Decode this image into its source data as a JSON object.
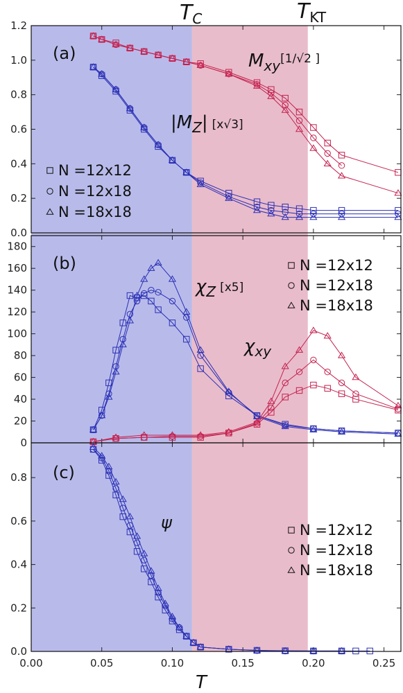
{
  "figure": {
    "xlabel": "T",
    "tc_label": "T",
    "tc_sub": "C",
    "tkt_label": "T",
    "tkt_sub": "KT",
    "tc": 0.114,
    "tkt": 0.196,
    "xlim": [
      0.0,
      0.262
    ],
    "xticks": [
      "0.00",
      "0.05",
      "0.10",
      "0.15",
      "0.20",
      "0.25"
    ],
    "colors": {
      "blue_region": "#b8bbea",
      "pink_region": "#e9bccb",
      "blue": "#2a2fb5",
      "red": "#c4204e"
    }
  },
  "chart_data": [
    {
      "type": "scatter",
      "panel": "(a)",
      "ylim": [
        0.0,
        1.2
      ],
      "yticks": [
        "0.0",
        "0.2",
        "0.4",
        "0.6",
        "0.8",
        "1.0",
        "1.2"
      ],
      "annotations": {
        "mxy": "M",
        "mxy_sub": "xy",
        "mxy_factor": "[1/√2 ]",
        "mz": "|M",
        "mz_sub": "Z",
        "mz_close": "|",
        "mz_factor": "[x√3]"
      },
      "legend": [
        "N =12x12",
        "N =12x18",
        "N =18x18"
      ],
      "series": [
        {
          "name": "N =12x12",
          "quantity": "Mxy",
          "x": [
            0.044,
            0.05,
            0.06,
            0.07,
            0.08,
            0.09,
            0.1,
            0.11,
            0.12,
            0.14,
            0.16,
            0.17,
            0.18,
            0.19,
            0.2,
            0.21,
            0.22,
            0.26
          ],
          "y": [
            1.14,
            1.12,
            1.1,
            1.07,
            1.05,
            1.03,
            1.01,
            0.99,
            0.98,
            0.93,
            0.87,
            0.83,
            0.78,
            0.7,
            0.61,
            0.52,
            0.45,
            0.35
          ]
        },
        {
          "name": "N =12x18",
          "quantity": "Mxy",
          "x": [
            0.044,
            0.05,
            0.06,
            0.07,
            0.08,
            0.09,
            0.1,
            0.11,
            0.12,
            0.14,
            0.16,
            0.17,
            0.18,
            0.19,
            0.2,
            0.21,
            0.22
          ],
          "y": [
            1.14,
            1.12,
            1.09,
            1.07,
            1.05,
            1.03,
            1.01,
            0.99,
            0.97,
            0.92,
            0.86,
            0.81,
            0.74,
            0.65,
            0.55,
            0.46,
            0.39
          ]
        },
        {
          "name": "N =18x18",
          "quantity": "Mxy",
          "x": [
            0.044,
            0.05,
            0.06,
            0.07,
            0.08,
            0.09,
            0.1,
            0.11,
            0.12,
            0.14,
            0.16,
            0.17,
            0.18,
            0.19,
            0.2,
            0.21,
            0.22,
            0.26
          ],
          "y": [
            1.14,
            1.12,
            1.09,
            1.07,
            1.05,
            1.03,
            1.01,
            0.99,
            0.97,
            0.92,
            0.85,
            0.79,
            0.71,
            0.6,
            0.49,
            0.4,
            0.33,
            0.23
          ]
        },
        {
          "name": "N =12x12",
          "quantity": "Mz",
          "x": [
            0.044,
            0.05,
            0.06,
            0.07,
            0.08,
            0.09,
            0.1,
            0.11,
            0.12,
            0.14,
            0.16,
            0.17,
            0.18,
            0.19,
            0.2,
            0.22,
            0.26
          ],
          "y": [
            0.96,
            0.91,
            0.82,
            0.71,
            0.6,
            0.5,
            0.42,
            0.35,
            0.3,
            0.23,
            0.18,
            0.16,
            0.15,
            0.14,
            0.13,
            0.13,
            0.13
          ]
        },
        {
          "name": "N =12x18",
          "quantity": "Mz",
          "x": [
            0.044,
            0.05,
            0.06,
            0.07,
            0.08,
            0.09,
            0.1,
            0.11,
            0.12,
            0.14,
            0.16,
            0.17,
            0.18,
            0.19,
            0.2,
            0.22,
            0.26
          ],
          "y": [
            0.96,
            0.92,
            0.83,
            0.72,
            0.61,
            0.51,
            0.42,
            0.35,
            0.29,
            0.21,
            0.15,
            0.13,
            0.12,
            0.11,
            0.11,
            0.11,
            0.11
          ]
        },
        {
          "name": "N =18x18",
          "quantity": "Mz",
          "x": [
            0.044,
            0.05,
            0.06,
            0.07,
            0.08,
            0.09,
            0.1,
            0.11,
            0.12,
            0.14,
            0.16,
            0.17,
            0.18,
            0.19,
            0.2,
            0.22,
            0.26
          ],
          "y": [
            0.96,
            0.92,
            0.83,
            0.72,
            0.61,
            0.51,
            0.42,
            0.35,
            0.28,
            0.2,
            0.13,
            0.11,
            0.09,
            0.09,
            0.09,
            0.09,
            0.09
          ]
        }
      ]
    },
    {
      "type": "scatter",
      "panel": "(b)",
      "ylim": [
        0,
        190
      ],
      "yticks": [
        "0",
        "20",
        "40",
        "60",
        "80",
        "100",
        "120",
        "140",
        "160",
        "180"
      ],
      "annotations": {
        "chiz": "χ",
        "chiz_sub": "Z",
        "chiz_factor": "[x5]",
        "chixy": "χ",
        "chixy_sub": "xy"
      },
      "legend": [
        "N =12x12",
        "N =12x18",
        "N =18x18"
      ],
      "series": [
        {
          "name": "N =12x12",
          "quantity": "chi_z",
          "x": [
            0.044,
            0.05,
            0.055,
            0.06,
            0.065,
            0.07,
            0.075,
            0.08,
            0.085,
            0.09,
            0.1,
            0.11,
            0.12,
            0.14,
            0.16,
            0.18,
            0.2,
            0.22,
            0.26
          ],
          "y": [
            12,
            30,
            55,
            85,
            110,
            135,
            133,
            135,
            130,
            122,
            110,
            95,
            68,
            43,
            25,
            17,
            13,
            11,
            9
          ]
        },
        {
          "name": "N =12x18",
          "quantity": "chi_z",
          "x": [
            0.044,
            0.05,
            0.055,
            0.06,
            0.065,
            0.07,
            0.075,
            0.08,
            0.085,
            0.09,
            0.1,
            0.11,
            0.12,
            0.14,
            0.16,
            0.18,
            0.2,
            0.22,
            0.26
          ],
          "y": [
            12,
            25,
            45,
            70,
            95,
            118,
            130,
            137,
            140,
            138,
            130,
            115,
            80,
            46,
            25,
            16,
            13,
            11,
            9
          ]
        },
        {
          "name": "N =18x18",
          "quantity": "chi_z",
          "x": [
            0.044,
            0.05,
            0.055,
            0.06,
            0.065,
            0.07,
            0.075,
            0.08,
            0.085,
            0.09,
            0.1,
            0.11,
            0.12,
            0.14,
            0.16,
            0.18,
            0.2,
            0.22,
            0.26
          ],
          "y": [
            12,
            25,
            42,
            65,
            90,
            112,
            135,
            150,
            160,
            165,
            150,
            120,
            85,
            47,
            24,
            15,
            12,
            10,
            8
          ]
        },
        {
          "name": "N =12x12",
          "quantity": "chi_xy",
          "x": [
            0.044,
            0.06,
            0.08,
            0.1,
            0.12,
            0.14,
            0.16,
            0.17,
            0.18,
            0.19,
            0.2,
            0.21,
            0.22,
            0.23,
            0.26
          ],
          "y": [
            1,
            4,
            5,
            5,
            5,
            9,
            17,
            28,
            42,
            48,
            53,
            50,
            45,
            40,
            30
          ]
        },
        {
          "name": "N =12x18",
          "quantity": "chi_xy",
          "x": [
            0.044,
            0.06,
            0.08,
            0.1,
            0.12,
            0.14,
            0.16,
            0.17,
            0.18,
            0.19,
            0.2,
            0.21,
            0.22,
            0.23,
            0.26
          ],
          "y": [
            1,
            4,
            5,
            6,
            6,
            9,
            18,
            32,
            55,
            65,
            76,
            65,
            55,
            45,
            31
          ]
        },
        {
          "name": "N =18x18",
          "quantity": "chi_xy",
          "x": [
            0.044,
            0.06,
            0.08,
            0.1,
            0.12,
            0.14,
            0.16,
            0.17,
            0.18,
            0.19,
            0.2,
            0.21,
            0.22,
            0.23,
            0.26
          ],
          "y": [
            1,
            5,
            7,
            7,
            7,
            10,
            19,
            38,
            70,
            85,
            103,
            98,
            80,
            60,
            34
          ]
        }
      ]
    },
    {
      "type": "scatter",
      "panel": "(c)",
      "ylim": [
        0.0,
        0.96
      ],
      "yticks": [
        "0.0",
        "0.2",
        "0.4",
        "0.6",
        "0.8"
      ],
      "annotations": {
        "psi": "ψ"
      },
      "legend": [
        "N =12x12",
        "N =12x18",
        "N =18x18"
      ],
      "series": [
        {
          "name": "N =12x12",
          "quantity": "psi",
          "x": [
            0.044,
            0.05,
            0.055,
            0.06,
            0.065,
            0.07,
            0.075,
            0.08,
            0.085,
            0.09,
            0.095,
            0.1,
            0.105,
            0.11,
            0.115,
            0.12,
            0.14,
            0.16,
            0.18,
            0.2,
            0.22,
            0.23,
            0.24
          ],
          "y": [
            0.93,
            0.88,
            0.81,
            0.72,
            0.62,
            0.55,
            0.46,
            0.38,
            0.32,
            0.25,
            0.19,
            0.14,
            0.1,
            0.07,
            0.04,
            0.02,
            0.01,
            0.005,
            0.003,
            0.002,
            0.002,
            0.002,
            0.002
          ]
        },
        {
          "name": "N =12x18",
          "quantity": "psi",
          "x": [
            0.044,
            0.05,
            0.055,
            0.06,
            0.065,
            0.07,
            0.075,
            0.08,
            0.085,
            0.09,
            0.095,
            0.1,
            0.105,
            0.11,
            0.115,
            0.12,
            0.14,
            0.16,
            0.18,
            0.2,
            0.22
          ],
          "y": [
            0.93,
            0.89,
            0.83,
            0.75,
            0.66,
            0.58,
            0.5,
            0.42,
            0.35,
            0.27,
            0.21,
            0.15,
            0.11,
            0.07,
            0.04,
            0.02,
            0.01,
            0.004,
            0.002,
            0.002,
            0.002
          ]
        },
        {
          "name": "N =18x18",
          "quantity": "psi",
          "x": [
            0.044,
            0.05,
            0.055,
            0.06,
            0.065,
            0.07,
            0.075,
            0.08,
            0.085,
            0.09,
            0.095,
            0.1,
            0.105,
            0.11,
            0.115,
            0.12,
            0.14,
            0.16,
            0.18,
            0.2,
            0.22
          ],
          "y": [
            0.94,
            0.9,
            0.85,
            0.78,
            0.7,
            0.62,
            0.53,
            0.45,
            0.37,
            0.29,
            0.22,
            0.16,
            0.11,
            0.07,
            0.04,
            0.02,
            0.01,
            0.004,
            0.002,
            0.002,
            0.002
          ]
        }
      ]
    }
  ]
}
